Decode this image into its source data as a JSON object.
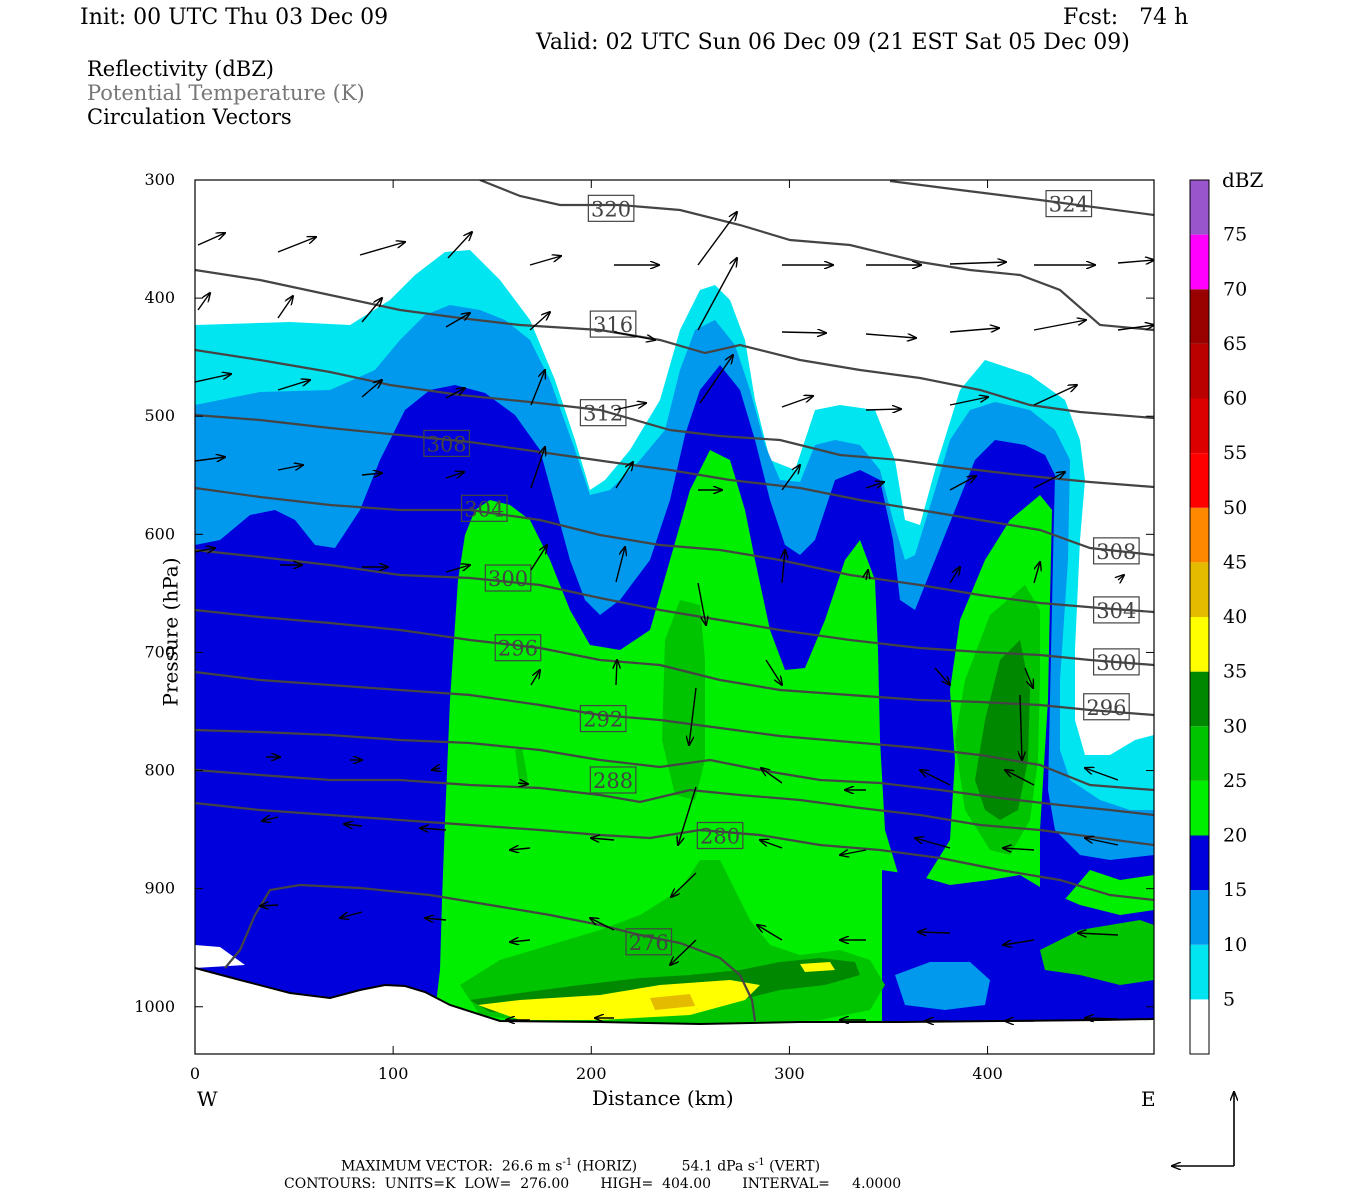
{
  "header": {
    "init": "Init: 00 UTC Thu 03 Dec 09",
    "fcst": "Fcst:   74 h",
    "valid": "Valid: 02 UTC Sun 06 Dec 09 (21 EST Sat 05 Dec 09)"
  },
  "fields": {
    "reflectivity": "Reflectivity (dBZ)",
    "theta": "Potential Temperature (K)",
    "vectors": "Circulation Vectors"
  },
  "footer": {
    "max_vector_label": "MAXIMUM VECTOR:",
    "max_horiz": "26.6 m s",
    "horiz_tag": "(HORIZ)",
    "max_vert": "54.1 dPa s",
    "vert_tag": "(VERT)",
    "exp": "-1",
    "contours_line": "CONTOURS:  UNITS=K  LOW=  276.00       HIGH=  404.00       INTERVAL=     4.0000"
  },
  "colors": {
    "c5": "#00e5f0",
    "c10": "#0099ee",
    "c15": "#0000dd",
    "c20": "#00ee00",
    "c25": "#00c400",
    "c30": "#008800",
    "c35": "#ffff00",
    "c40": "#e5bb00",
    "c45": "#ff8800",
    "c50": "#ff0000",
    "c55": "#dd0000",
    "c60": "#bb0000",
    "c65": "#990000",
    "c70": "#ff00ff",
    "c75": "#9955cc",
    "theta_line": "#444444"
  },
  "chart_data": {
    "type": "heatmap",
    "title": "Reflectivity (dBZ)",
    "xlabel": "Distance (km)",
    "ylabel": "Pressure (hPa)",
    "xlim": [
      0,
      484
    ],
    "ylim": [
      1040,
      300
    ],
    "x_ticks": [
      0,
      100,
      200,
      300,
      400
    ],
    "y_ticks": [
      300,
      400,
      500,
      600,
      700,
      800,
      900,
      1000
    ],
    "x_end_labels": {
      "left": "W",
      "right": "E"
    },
    "colorbar": {
      "unit": "dBZ",
      "levels": [
        5,
        10,
        15,
        20,
        25,
        30,
        35,
        40,
        45,
        50,
        55,
        60,
        65,
        70,
        75
      ]
    },
    "theta_contour_labels": [
      {
        "value": "320",
        "x": 210,
        "p": 324
      },
      {
        "value": "324",
        "x": 441,
        "p": 320
      },
      {
        "value": "316",
        "x": 211,
        "p": 422
      },
      {
        "value": "312",
        "x": 206,
        "p": 497
      },
      {
        "value": "308",
        "x": 127,
        "p": 523
      },
      {
        "value": "304",
        "x": 146,
        "p": 578
      },
      {
        "value": "300",
        "x": 158,
        "p": 637
      },
      {
        "value": "296",
        "x": 163,
        "p": 696
      },
      {
        "value": "292",
        "x": 206,
        "p": 756
      },
      {
        "value": "288",
        "x": 211,
        "p": 808
      },
      {
        "value": "280",
        "x": 265,
        "p": 855
      },
      {
        "value": "276",
        "x": 229,
        "p": 945
      },
      {
        "value": "308",
        "x": 465,
        "p": 614
      },
      {
        "value": "304",
        "x": 465,
        "p": 664
      },
      {
        "value": "300",
        "x": 465,
        "p": 708
      },
      {
        "value": "296",
        "x": 460,
        "p": 746
      }
    ]
  }
}
